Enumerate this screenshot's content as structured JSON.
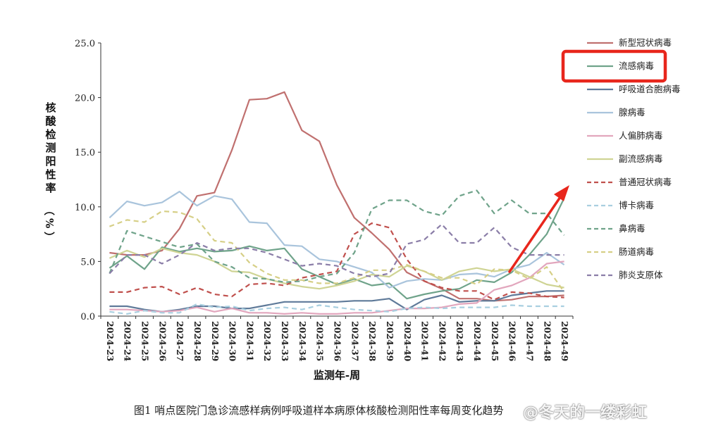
{
  "caption": "图1   哨点医院门急诊流感样病例呼吸道样本病原体核酸检测阳性率每周变化趋势",
  "watermark": "@冬天的一缕彩虹",
  "chart_data": {
    "type": "line",
    "xlabel": "监测年-周",
    "ylabel": "核酸检测阳性率（%）",
    "ylim": [
      0,
      25
    ],
    "yticks": [
      "0.0",
      "5.0",
      "10.0",
      "15.0",
      "20.0",
      "25.0"
    ],
    "grid": false,
    "legend_position": "right",
    "categories": [
      "2024-23",
      "2024-24",
      "2024-25",
      "2024-26",
      "2024-27",
      "2024-28",
      "2024-29",
      "2024-30",
      "2024-31",
      "2024-32",
      "2024-33",
      "2024-34",
      "2024-35",
      "2024-36",
      "2024-37",
      "2024-38",
      "2024-39",
      "2024-40",
      "2024-41",
      "2024-42",
      "2024-43",
      "2024-44",
      "2024-45",
      "2024-46",
      "2024-47",
      "2024-48",
      "2024-49"
    ],
    "series": [
      {
        "name": "新型冠状病毒",
        "color": "#c0706f",
        "dash": "solid",
        "values": [
          5.8,
          5.6,
          5.6,
          6.0,
          8.0,
          11.0,
          11.3,
          15.2,
          19.8,
          19.9,
          20.5,
          17.0,
          16.0,
          12.0,
          9.0,
          7.6,
          6.1,
          4.0,
          3.2,
          2.5,
          1.6,
          1.6,
          1.4,
          1.5,
          1.8,
          1.8,
          1.9
        ]
      },
      {
        "name": "流感病毒",
        "color": "#6fa38a",
        "dash": "solid",
        "values": [
          4.4,
          5.5,
          4.3,
          6.3,
          5.9,
          6.2,
          5.9,
          6.0,
          6.4,
          6.0,
          6.2,
          4.3,
          3.6,
          2.9,
          3.4,
          2.8,
          3.0,
          1.6,
          2.0,
          2.3,
          2.5,
          3.3,
          3.1,
          4.0,
          5.6,
          7.5,
          10.8
        ]
      },
      {
        "name": "呼吸道合胞病毒",
        "color": "#5f7a99",
        "dash": "solid",
        "values": [
          0.9,
          0.9,
          0.6,
          0.4,
          0.6,
          0.9,
          0.9,
          0.7,
          0.7,
          1.0,
          1.3,
          1.3,
          1.3,
          1.3,
          1.4,
          1.4,
          1.6,
          0.6,
          1.5,
          1.9,
          1.3,
          1.4,
          1.4,
          1.9,
          2.1,
          2.3,
          2.3
        ]
      },
      {
        "name": "腺病毒",
        "color": "#a9c4dc",
        "dash": "solid",
        "values": [
          9.0,
          10.5,
          10.1,
          10.4,
          11.4,
          10.1,
          11.0,
          10.7,
          8.6,
          8.5,
          6.5,
          6.4,
          5.2,
          5.0,
          4.5,
          4.0,
          2.6,
          3.2,
          3.4,
          3.3,
          3.8,
          3.9,
          3.6,
          4.3,
          4.7,
          5.8,
          4.7
        ]
      },
      {
        "name": "人偏肺病毒",
        "color": "#e2a6bd",
        "dash": "solid",
        "values": [
          0.6,
          0.6,
          0.5,
          0.4,
          0.5,
          0.8,
          0.4,
          0.7,
          0.3,
          0.3,
          0.2,
          0.3,
          0.2,
          0.2,
          0.3,
          0.3,
          0.5,
          0.7,
          0.7,
          0.8,
          1.1,
          1.2,
          2.4,
          2.8,
          3.5,
          4.8,
          5.0
        ]
      },
      {
        "name": "副流感病毒",
        "color": "#cfd494",
        "dash": "solid",
        "values": [
          5.3,
          6.0,
          5.4,
          6.2,
          5.8,
          5.6,
          5.0,
          4.1,
          4.0,
          3.4,
          3.0,
          2.7,
          2.5,
          2.8,
          3.2,
          3.8,
          3.6,
          4.6,
          4.1,
          3.3,
          4.1,
          4.4,
          4.1,
          4.3,
          3.6,
          2.9,
          2.6
        ]
      },
      {
        "name": "普通冠状病毒",
        "color": "#c0504d",
        "dash": "dash",
        "values": [
          2.2,
          2.2,
          2.6,
          2.7,
          2.0,
          2.6,
          2.0,
          1.8,
          2.9,
          3.0,
          2.8,
          3.5,
          3.8,
          4.1,
          7.5,
          8.5,
          8.1,
          5.2,
          3.2,
          2.6,
          2.3,
          2.3,
          1.5,
          2.2,
          2.1,
          1.8,
          1.7
        ]
      },
      {
        "name": "博卡病毒",
        "color": "#a9cfe0",
        "dash": "dash",
        "values": [
          0.4,
          0.2,
          0.5,
          0.3,
          0.3,
          1.1,
          0.8,
          0.9,
          0.5,
          0.7,
          0.8,
          0.6,
          1.0,
          0.8,
          0.6,
          0.5,
          0.4,
          0.7,
          0.8,
          0.7,
          0.8,
          0.8,
          0.8,
          1.0,
          0.9,
          0.9,
          0.9
        ]
      },
      {
        "name": "鼻病毒",
        "color": "#6fa38a",
        "dash": "dash",
        "values": [
          3.9,
          7.8,
          7.3,
          6.8,
          6.3,
          6.6,
          5.0,
          4.5,
          3.5,
          3.4,
          3.1,
          3.2,
          3.6,
          3.9,
          5.8,
          9.8,
          10.6,
          10.6,
          9.6,
          9.2,
          11.0,
          11.5,
          9.4,
          10.6,
          9.4,
          9.4,
          7.4
        ]
      },
      {
        "name": "肠道病毒",
        "color": "#d6cf86",
        "dash": "dash",
        "values": [
          8.2,
          8.8,
          8.6,
          9.6,
          9.5,
          8.9,
          6.9,
          6.7,
          4.9,
          3.9,
          3.3,
          3.3,
          3.0,
          3.0,
          3.5,
          4.2,
          4.2,
          4.7,
          4.1,
          3.5,
          3.5,
          2.9,
          4.3,
          4.2,
          3.4,
          4.5,
          2.2
        ]
      },
      {
        "name": "肺炎支原体",
        "color": "#8b7ea8",
        "dash": "dash",
        "values": [
          3.9,
          5.6,
          5.6,
          4.8,
          5.6,
          6.7,
          6.0,
          6.2,
          6.2,
          5.8,
          5.2,
          4.6,
          4.8,
          4.6,
          3.9,
          3.6,
          3.9,
          6.6,
          7.0,
          8.4,
          6.7,
          6.7,
          8.1,
          6.3,
          5.6,
          5.6,
          5.6
        ]
      }
    ],
    "annotations": [
      {
        "type": "highlight-box",
        "target": "流感病毒",
        "color": "#e8261c"
      },
      {
        "type": "arrow",
        "color": "#e8261c",
        "points_to": "2024-49"
      }
    ]
  }
}
